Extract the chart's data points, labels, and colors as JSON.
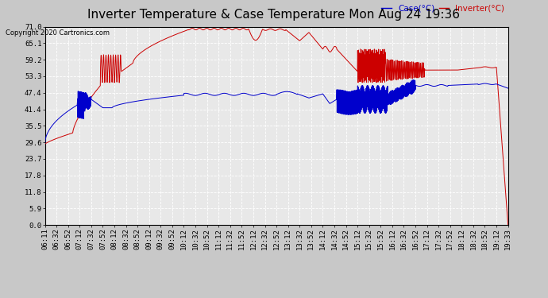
{
  "title": "Inverter Temperature & Case Temperature Mon Aug 24 19:36",
  "copyright": "Copyright 2020 Cartronics.com",
  "legend_case": "Case(°C)",
  "legend_inverter": "Inverter(°C)",
  "ylabel_ticks": [
    0.0,
    5.9,
    11.8,
    17.8,
    23.7,
    29.6,
    35.5,
    41.4,
    47.4,
    53.3,
    59.2,
    65.1,
    71.0
  ],
  "xlabels": [
    "06:11",
    "06:32",
    "06:52",
    "07:12",
    "07:32",
    "07:52",
    "08:12",
    "08:32",
    "08:52",
    "09:12",
    "09:32",
    "09:52",
    "10:12",
    "10:32",
    "10:52",
    "11:12",
    "11:32",
    "11:52",
    "12:12",
    "12:32",
    "12:52",
    "13:12",
    "13:32",
    "13:52",
    "14:12",
    "14:32",
    "14:52",
    "15:12",
    "15:32",
    "15:52",
    "16:12",
    "16:32",
    "16:52",
    "17:12",
    "17:32",
    "17:52",
    "18:12",
    "18:32",
    "18:52",
    "19:12",
    "19:33"
  ],
  "ylim": [
    0.0,
    71.0
  ],
  "bg_color": "#e8e8e8",
  "grid_color": "#ffffff",
  "case_color": "#0000cc",
  "inverter_color": "#cc0000",
  "title_fontsize": 11,
  "tick_fontsize": 6.5,
  "copyright_fontsize": 6,
  "legend_fontsize": 7.5
}
